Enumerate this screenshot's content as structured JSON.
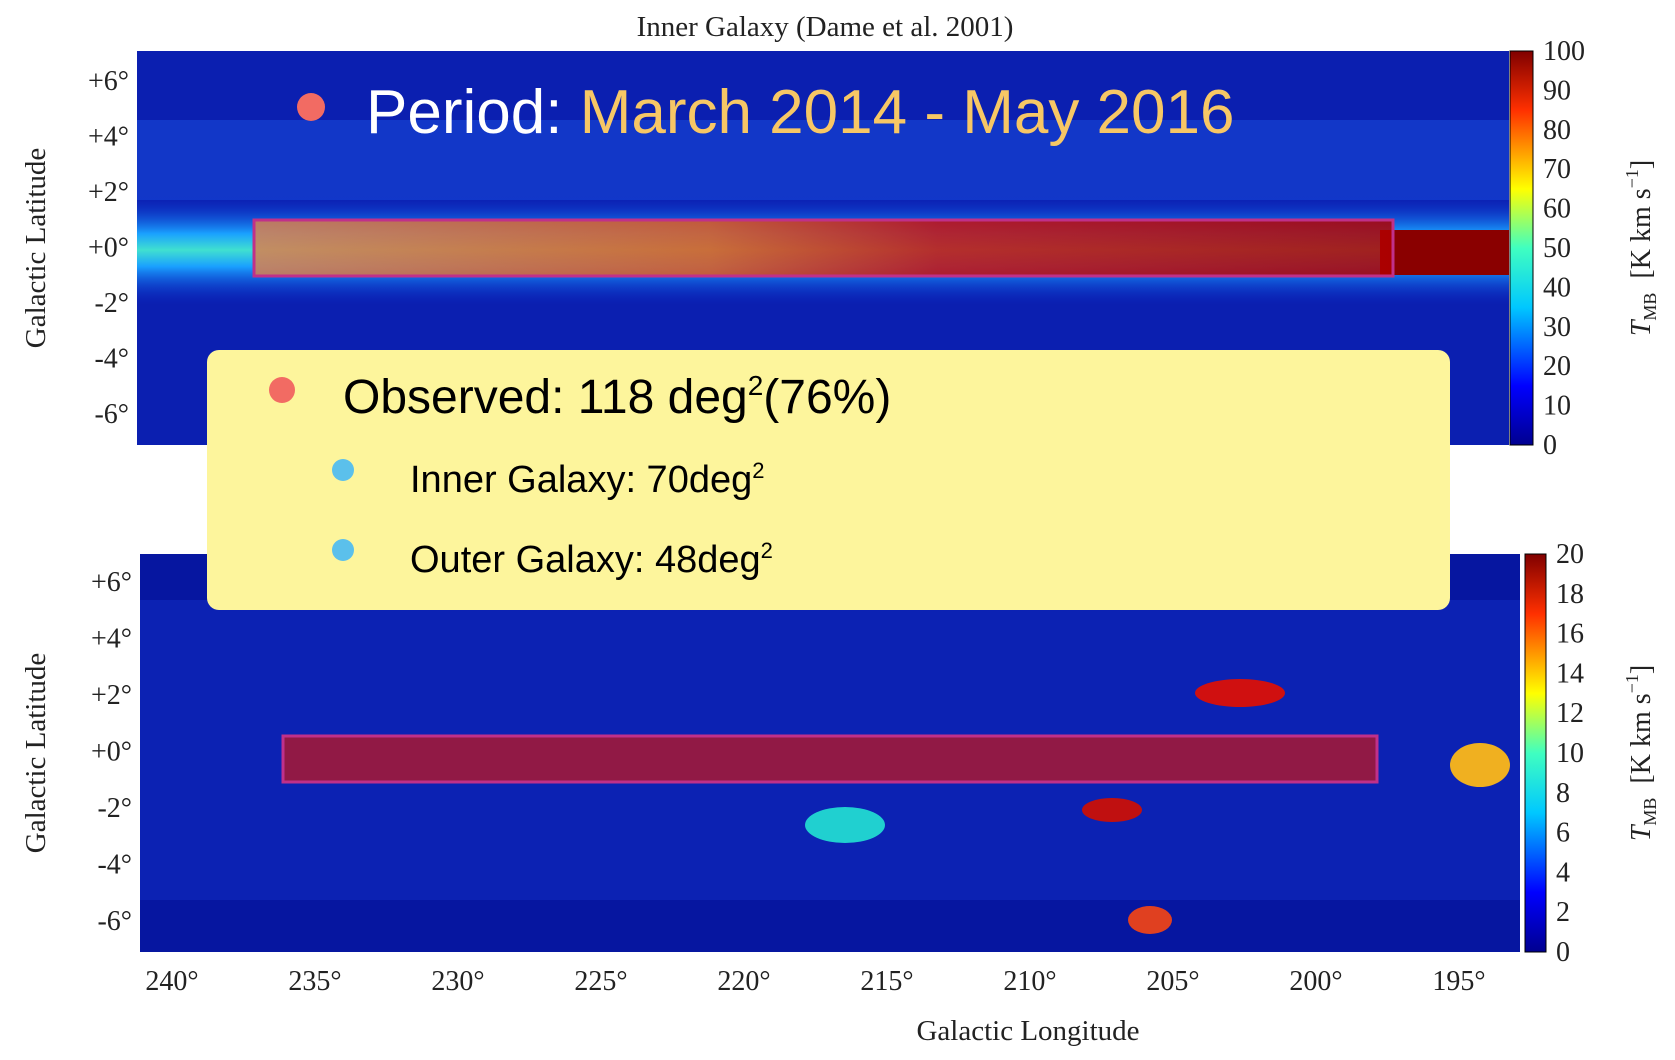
{
  "title": "Inner Galaxy (Dame et al. 2001)",
  "period": {
    "label": "Period:",
    "value": "March 2014 - May 2016"
  },
  "observed": {
    "text": "Observed: 118 deg",
    "sup": "2",
    "rest": "(76%)",
    "items": [
      {
        "text": "Inner Galaxy: 70deg",
        "sup": "2"
      },
      {
        "text": "Outer Galaxy: 48deg",
        "sup": "2"
      }
    ]
  },
  "y_label": "Galactic Latitude",
  "x_label": "Galactic Longitude",
  "y_ticks": [
    "+6°",
    "+4°",
    "+2°",
    "+0°",
    "-2°",
    "-4°",
    "-6°"
  ],
  "x_ticks": [
    "240°",
    "235°",
    "230°",
    "225°",
    "220°",
    "215°",
    "210°",
    "205°",
    "200°",
    "195°"
  ],
  "colorbar_label": {
    "t": "T",
    "sub": "MB",
    "unit": "[K km s",
    "sup": "−1",
    "close": "]"
  },
  "top_colorbar_ticks": [
    "100",
    "90",
    "80",
    "70",
    "60",
    "50",
    "40",
    "30",
    "20",
    "10",
    "0"
  ],
  "bottom_colorbar_ticks": [
    "20",
    "18",
    "16",
    "14",
    "12",
    "10",
    "8",
    "6",
    "4",
    "2",
    "0"
  ]
}
